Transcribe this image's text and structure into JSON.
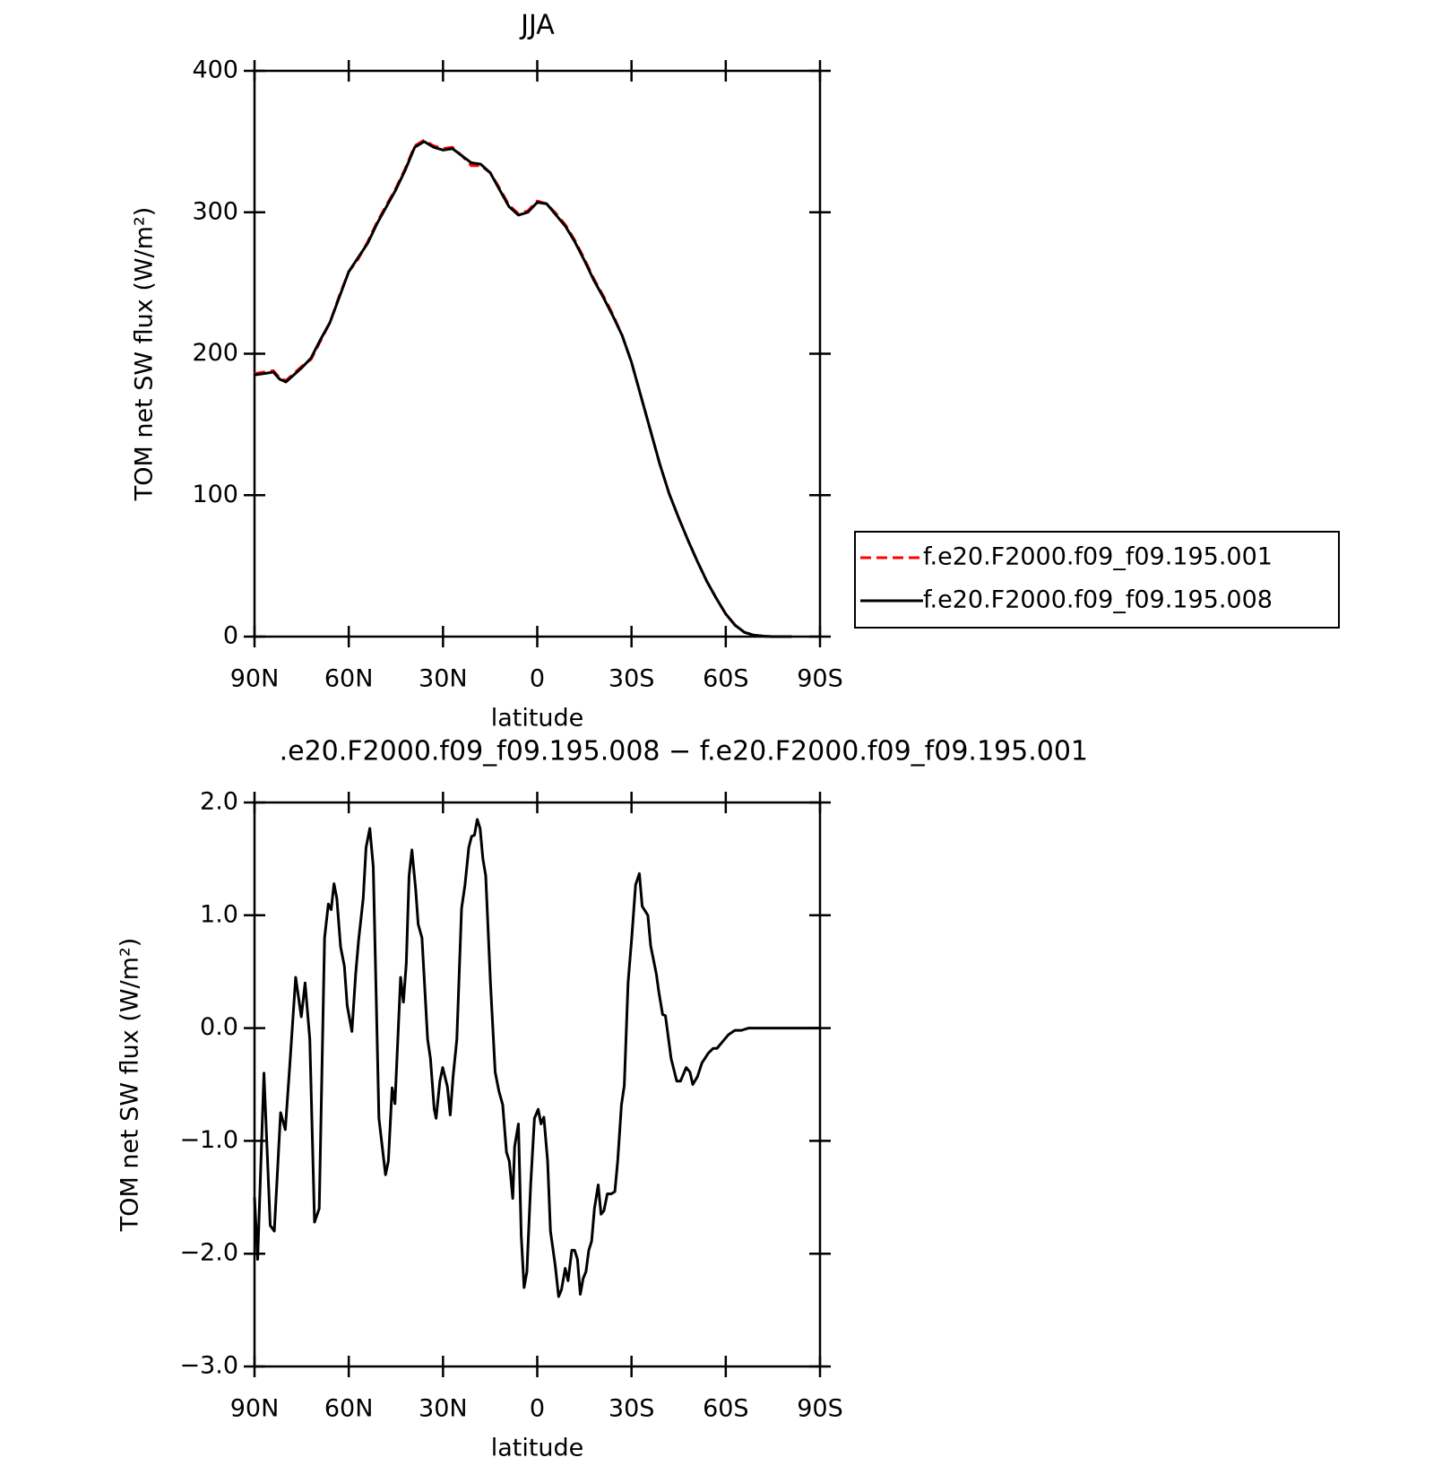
{
  "chart_data": [
    {
      "type": "line",
      "title": "JJA",
      "xlabel": "latitude",
      "ylabel": "TOM net SW flux (W/m²)",
      "xlim": [
        90,
        -90
      ],
      "ylim": [
        0,
        400
      ],
      "xticks": [
        {
          "value": 90,
          "label": "90N"
        },
        {
          "value": 60,
          "label": "60N"
        },
        {
          "value": 30,
          "label": "30N"
        },
        0,
        {
          "value": -30,
          "label": "30S"
        },
        {
          "value": -60,
          "label": "60S"
        },
        {
          "value": -90,
          "label": "90S"
        }
      ],
      "yticks": [
        0,
        100,
        200,
        300,
        400
      ],
      "legend": "right",
      "x": [
        90,
        87,
        84,
        82,
        80,
        78,
        75,
        72,
        69,
        66,
        63,
        60,
        57,
        54,
        51,
        48,
        45,
        42,
        39,
        36,
        33,
        30,
        27,
        24,
        21,
        18,
        15,
        12,
        9,
        6,
        3,
        0,
        -3,
        -6,
        -9,
        -12,
        -15,
        -18,
        -21,
        -24,
        -27,
        -30,
        -33,
        -36,
        -39,
        -42,
        -45,
        -48,
        -51,
        -54,
        -57,
        -60,
        -63,
        -66,
        -69,
        -72,
        -75,
        -78,
        -81
      ],
      "series": [
        {
          "name": "f.e20.F2000.f09_f09.195.001",
          "color": "#ff0000",
          "dash": true,
          "values": [
            186,
            187,
            188,
            183,
            181,
            185,
            191,
            196,
            209,
            222,
            241,
            258,
            267,
            279,
            293,
            305,
            317,
            331,
            347,
            351,
            347,
            345,
            346,
            340,
            333,
            333,
            328,
            317,
            305,
            299,
            301,
            308,
            306,
            299,
            291,
            280,
            267,
            253,
            241,
            228,
            213,
            194,
            170,
            146,
            122,
            101,
            84,
            68,
            53,
            39,
            27,
            16,
            8,
            3,
            1,
            0.3,
            0,
            0,
            0
          ]
        },
        {
          "name": "f.e20.F2000.f09_f09.195.008",
          "color": "#000000",
          "dash": false,
          "values": [
            185,
            186,
            187,
            182,
            180,
            184,
            190,
            197,
            210,
            222,
            240,
            258,
            268,
            278,
            292,
            304,
            316,
            330,
            346,
            350,
            346,
            344,
            345,
            340,
            335,
            334,
            328,
            316,
            304,
            298,
            300,
            307,
            306,
            298,
            290,
            279,
            266,
            252,
            240,
            227,
            213,
            194,
            170,
            146,
            122,
            101,
            84,
            68,
            53,
            39,
            27,
            16,
            8,
            3,
            1,
            0.3,
            0,
            0,
            0
          ]
        }
      ]
    },
    {
      "type": "line",
      "title": ".e20.F2000.f09_f09.195.008 − f.e20.F2000.f09_f09.195.001",
      "xlabel": "latitude",
      "ylabel": "TOM net SW flux (W/m²)",
      "xlim": [
        90,
        -90
      ],
      "ylim": [
        -3,
        2
      ],
      "xticks": [
        {
          "value": 90,
          "label": "90N"
        },
        {
          "value": 60,
          "label": "60N"
        },
        {
          "value": 30,
          "label": "30N"
        },
        0,
        {
          "value": -30,
          "label": "30S"
        },
        {
          "value": -60,
          "label": "60S"
        },
        {
          "value": -90,
          "label": "90S"
        }
      ],
      "yticks": [
        {
          "value": -3,
          "label": "−3.0"
        },
        {
          "value": -2,
          "label": "−2.0"
        },
        {
          "value": -1,
          "label": "−1.0"
        },
        {
          "value": 0,
          "label": "0.0"
        },
        {
          "value": 1,
          "label": "1.0"
        },
        {
          "value": 2,
          "label": "2.0"
        }
      ],
      "x": [
        90,
        89,
        87,
        85,
        83.7,
        81.7,
        80.2,
        78.7,
        76.9,
        75.1,
        73.9,
        72.4,
        70.9,
        69.4,
        67.7,
        66.5,
        65.6,
        64.7,
        63.8,
        62.6,
        61.4,
        60.5,
        59,
        57.8,
        56.9,
        55.4,
        54.5,
        53.3,
        52.2,
        50.4,
        48.3,
        47.4,
        46.2,
        45.3,
        43.5,
        42.6,
        41.7,
        40.8,
        39.9,
        38.7,
        37.9,
        36.7,
        34.9,
        34,
        32.8,
        32.2,
        31,
        30.1,
        28.6,
        27.7,
        26.8,
        25.6,
        24.1,
        23,
        21.8,
        20.9,
        20,
        19.1,
        18.2,
        17.3,
        16.4,
        14.9,
        13.4,
        12.2,
        11,
        9.8,
        8.9,
        7.8,
        7.2,
        6,
        5.1,
        4.2,
        3.3,
        2.1,
        0.9,
        -0.3,
        -1.2,
        -2.1,
        -3.3,
        -4.2,
        -5.7,
        -6.8,
        -7.7,
        -8.9,
        -9.8,
        -11,
        -11.9,
        -12.8,
        -13.7,
        -14.6,
        -15.5,
        -16.4,
        -17.3,
        -18.2,
        -19.4,
        -20.3,
        -21.2,
        -22.3,
        -23.5,
        -24.7,
        -25.6,
        -26.8,
        -27.7,
        -28.9,
        -30.1,
        -31.3,
        -32.5,
        -33.4,
        -35.2,
        -36.1,
        -37.9,
        -38.7,
        -39.9,
        -40.8,
        -42.6,
        -44.4,
        -45.6,
        -47.4,
        -48.6,
        -49.5,
        -51,
        -52.4,
        -54.5,
        -56,
        -57.2,
        -59,
        -60.8,
        -62.9,
        -65,
        -67.3,
        -73.3,
        -90
      ],
      "series": [
        {
          "color": "#000000",
          "dash": false,
          "values": [
            -1.5,
            -2.05,
            -0.4,
            -1.75,
            -1.8,
            -0.75,
            -0.9,
            -0.3,
            0.45,
            0.1,
            0.4,
            -0.1,
            -1.72,
            -1.6,
            0.8,
            1.1,
            1.05,
            1.28,
            1.15,
            0.72,
            0.55,
            0.2,
            -0.03,
            0.48,
            0.77,
            1.15,
            1.6,
            1.77,
            1.43,
            -0.8,
            -1.3,
            -1.18,
            -0.53,
            -0.67,
            0.45,
            0.23,
            0.57,
            1.35,
            1.58,
            1.23,
            0.92,
            0.8,
            -0.1,
            -0.27,
            -0.72,
            -0.8,
            -0.47,
            -0.35,
            -0.52,
            -0.77,
            -0.43,
            -0.1,
            1.06,
            1.27,
            1.6,
            1.7,
            1.71,
            1.85,
            1.77,
            1.5,
            1.35,
            0.4,
            -0.39,
            -0.56,
            -0.68,
            -1.1,
            -1.18,
            -1.51,
            -1.05,
            -0.85,
            -1.84,
            -2.3,
            -2.16,
            -1.39,
            -0.8,
            -0.72,
            -0.85,
            -0.79,
            -1.18,
            -1.8,
            -2.1,
            -2.38,
            -2.32,
            -2.13,
            -2.24,
            -1.97,
            -1.97,
            -2.05,
            -2.36,
            -2.22,
            -2.16,
            -1.97,
            -1.89,
            -1.6,
            -1.39,
            -1.65,
            -1.62,
            -1.47,
            -1.47,
            -1.45,
            -1.18,
            -0.68,
            -0.51,
            0.4,
            0.81,
            1.27,
            1.37,
            1.08,
            1.0,
            0.73,
            0.48,
            0.32,
            0.12,
            0.11,
            -0.27,
            -0.47,
            -0.47,
            -0.35,
            -0.39,
            -0.5,
            -0.43,
            -0.31,
            -0.22,
            -0.18,
            -0.18,
            -0.12,
            -0.06,
            -0.02,
            -0.02,
            0,
            0,
            0
          ]
        }
      ]
    }
  ]
}
